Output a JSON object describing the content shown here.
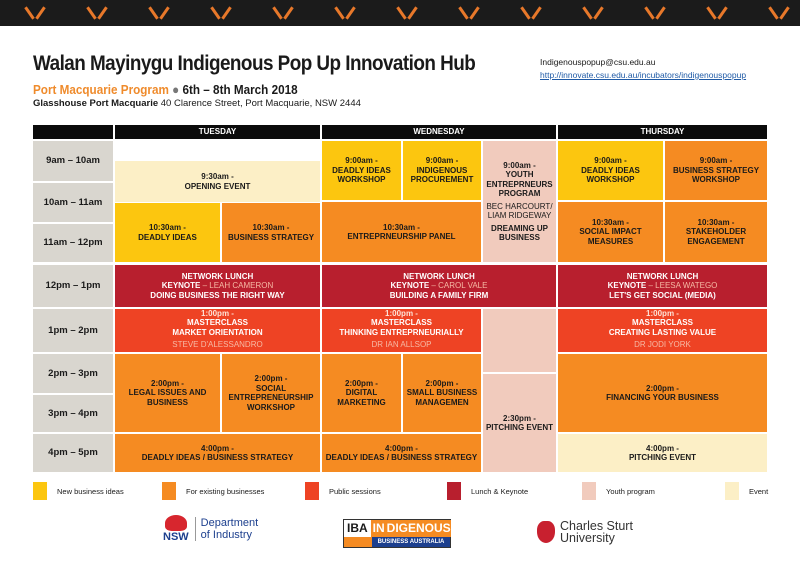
{
  "header": {
    "title": "Walan Mayinygu Indigenous Pop Up Innovation Hub",
    "program": "Port Macquarie Program",
    "dot": "●",
    "dates": "6th – 8th March 2018",
    "venue": "Glasshouse Port Macquarie",
    "address": "40 Clarence Street, Port Macquarie, NSW 2444",
    "email": "Indigenouspopup@csu.edu.au",
    "url": "http://innovate.csu.edu.au/incubators/indigenouspopup"
  },
  "days": [
    "TUESDAY",
    "WEDNESDAY",
    "THURSDAY"
  ],
  "times": [
    "9am – 10am",
    "10am – 11am",
    "11am – 12pm",
    "12pm – 1pm",
    "1pm – 2pm",
    "2pm – 3pm",
    "3pm – 4pm",
    "4pm – 5pm"
  ],
  "sessions": {
    "tue_open": {
      "time": "9:30am -",
      "title": "OPENING EVENT"
    },
    "tue_deadly": {
      "time": "10:30am -",
      "title": "DEADLY IDEAS"
    },
    "tue_strategy": {
      "time": "10:30am -",
      "title": "BUSINESS STRATEGY"
    },
    "tue_lunch": {
      "head": "NETWORK LUNCH",
      "kn": "KEYNOTE",
      "speaker": " – LEAH CAMERON",
      "title": "DOING BUSINESS THE RIGHT WAY"
    },
    "tue_master": {
      "time": "1:00pm -",
      "head": "MASTERCLASS",
      "title": "MARKET ORIENTATION",
      "speaker": "STEVE D'ALESSANDRO"
    },
    "tue_legal": {
      "time": "2:00pm -",
      "title": "LEGAL ISSUES AND BUSINESS"
    },
    "tue_social": {
      "time": "2:00pm -",
      "title": "SOCIAL ENTREPRENEURSHIP WORKSHOP"
    },
    "tue_4pm": {
      "time": "4:00pm -",
      "title": "DEADLY IDEAS / BUSINESS STRATEGY"
    },
    "wed_deadly": {
      "time": "9:00am -",
      "title": "DEADLY IDEAS WORKSHOP"
    },
    "wed_procure": {
      "time": "9:00am -",
      "title": "INDIGENOUS PROCUREMENT"
    },
    "wed_youth": {
      "time": "9:00am -",
      "title": "YOUTH ENTREPRNEURS PROGRAM",
      "speaker": "BEC HARCOURT/ LIAM RIDGEWAY",
      "title2": "DREAMING UP BUSINESS"
    },
    "wed_panel": {
      "time": "10:30am -",
      "title": "ENTREPRNEURSHIP PANEL"
    },
    "wed_lunch": {
      "head": "NETWORK LUNCH",
      "kn": "KEYNOTE",
      "speaker": " – CAROL VALE",
      "title": "BUILDING A FAMILY FIRM"
    },
    "wed_master": {
      "time": "1:00pm -",
      "head": "MASTERCLASS",
      "title": "THINKING ENTREPRNEURIALLY",
      "speaker": "DR IAN ALLSOP"
    },
    "wed_digital": {
      "time": "2:00pm -",
      "title": "DIGITAL MARKETING"
    },
    "wed_small": {
      "time": "2:00pm -",
      "title": "SMALL BUSINESS MANAGEMEN"
    },
    "wed_pitch": {
      "time": "2:30pm -",
      "title": "PITCHING EVENT"
    },
    "wed_4pm": {
      "time": "4:00pm -",
      "title": "DEADLY IDEAS / BUSINESS STRATEGY"
    },
    "thu_deadly": {
      "time": "9:00am -",
      "title": "DEADLY IDEAS WORKSHOP"
    },
    "thu_strategy": {
      "time": "9:00am -",
      "title": "BUSINESS STRATEGY WORKSHOP"
    },
    "thu_impact": {
      "time": "10:30am -",
      "title": "SOCIAL IMPACT MEASURES"
    },
    "thu_stake": {
      "time": "10:30am -",
      "title": "STAKEHOLDER ENGAGEMENT"
    },
    "thu_lunch": {
      "head": "NETWORK LUNCH",
      "kn": "KEYNOTE",
      "speaker": " – LEESA WATEGO",
      "title": "LET'S GET SOCIAL (MEDIA)"
    },
    "thu_master": {
      "time": "1:00pm -",
      "head": "MASTERCLASS",
      "title": "CREATING LASTING VALUE",
      "speaker": "DR JODI YORK"
    },
    "thu_finance": {
      "time": "2:00pm -",
      "title": "FINANCING YOUR BUSINESS"
    },
    "thu_pitch": {
      "time": "4:00pm -",
      "title": "PITCHING EVENT"
    }
  },
  "legend": [
    {
      "label": "New business ideas",
      "color": "#fcc60f"
    },
    {
      "label": "For existing businesses",
      "color": "#f58b22"
    },
    {
      "label": "Public sessions",
      "color": "#ee4324"
    },
    {
      "label": "Lunch & Keynote",
      "color": "#b81f2e"
    },
    {
      "label": "Youth program",
      "color": "#f1cbbd"
    },
    {
      "label": "Event",
      "color": "#fcefc6"
    }
  ],
  "logos": {
    "nsw": {
      "mark": "NSW",
      "line1": "Department",
      "line2": "of Industry"
    },
    "iba": {
      "a": "IBA",
      "b": "IN",
      "c": "DIGENOUS",
      "d": "BUSINESS AUSTRALIA"
    },
    "csu": {
      "line1": "Charles Sturt",
      "line2": "University"
    }
  }
}
